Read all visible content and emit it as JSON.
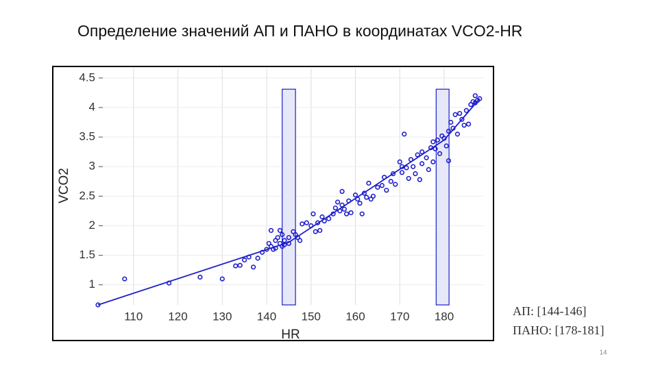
{
  "slide": {
    "title": "Определение значений АП и ПАНО в координатах VCO2-HR",
    "page_number": 14
  },
  "chart_data": {
    "type": "scatter",
    "x_label": "HR",
    "y_label": "VCO2",
    "xlim": [
      102,
      188.8
    ],
    "ylim": [
      0.66,
      4.66
    ],
    "xticks": [
      110,
      120,
      130,
      140,
      150,
      160,
      170,
      180
    ],
    "yticks": [
      1,
      1.5,
      2,
      2.5,
      3,
      3.5,
      4,
      4.5
    ],
    "grid": true,
    "color": "#1c1ccc",
    "points": {
      "x": [
        102,
        108,
        118,
        125,
        130,
        133,
        134,
        135,
        136,
        137,
        138,
        139,
        140,
        140.5,
        141,
        141,
        141.5,
        142,
        142,
        142.5,
        143,
        143,
        143.5,
        143.5,
        144,
        144,
        145,
        145,
        146,
        146.5,
        147,
        147.5,
        148,
        149,
        150,
        150.5,
        151,
        151.5,
        152,
        152.5,
        153,
        154,
        155,
        155.5,
        156,
        156.5,
        157,
        157,
        157.5,
        158,
        158.5,
        159,
        160,
        160.5,
        161,
        161.5,
        162,
        162.5,
        163,
        163.5,
        164,
        165,
        166,
        166.5,
        167,
        168,
        168.5,
        169,
        170,
        170.5,
        170.5,
        171,
        171.5,
        172,
        172.5,
        173,
        173.5,
        174,
        174.5,
        175,
        175,
        176,
        176.5,
        177,
        177.5,
        177.5,
        178,
        178.5,
        179,
        179.5,
        180,
        180.5,
        181,
        181,
        181.5,
        182,
        182.5,
        183,
        183.5,
        184,
        184.5,
        185,
        185.5,
        186,
        186.5,
        187,
        187,
        187.5,
        188
      ],
      "y": [
        0.66,
        1.1,
        1.03,
        1.13,
        1.1,
        1.32,
        1.33,
        1.42,
        1.47,
        1.3,
        1.45,
        1.55,
        1.6,
        1.7,
        1.92,
        1.65,
        1.6,
        1.75,
        1.62,
        1.8,
        1.92,
        1.7,
        1.65,
        1.85,
        1.75,
        1.68,
        1.7,
        1.8,
        1.9,
        1.85,
        1.8,
        1.75,
        2.03,
        2.05,
        2.0,
        2.2,
        1.9,
        2.05,
        1.92,
        2.15,
        2.08,
        2.12,
        2.2,
        2.3,
        2.4,
        2.25,
        2.58,
        2.35,
        2.28,
        2.2,
        2.42,
        2.22,
        2.52,
        2.45,
        2.38,
        2.2,
        2.55,
        2.48,
        2.72,
        2.45,
        2.5,
        2.65,
        2.68,
        2.82,
        2.6,
        2.75,
        2.88,
        2.7,
        3.08,
        2.9,
        3.0,
        3.55,
        2.98,
        2.8,
        3.12,
        3.0,
        2.88,
        3.2,
        2.78,
        3.05,
        3.25,
        3.15,
        2.95,
        3.32,
        3.42,
        3.08,
        3.3,
        3.45,
        3.22,
        3.52,
        3.48,
        3.35,
        3.6,
        3.1,
        3.75,
        3.65,
        3.88,
        3.55,
        3.9,
        3.8,
        3.7,
        3.95,
        3.72,
        4.05,
        4.1,
        4.2,
        4.08,
        4.12,
        4.15
      ]
    },
    "fit": {
      "x": [
        102,
        145,
        180,
        188
      ],
      "y": [
        0.66,
        1.72,
        3.45,
        4.15
      ]
    },
    "bands": [
      {
        "x": [
          143.5,
          146.5
        ],
        "top": 4.31
      },
      {
        "x": [
          178.2,
          181.1
        ],
        "top": 4.31
      }
    ],
    "annotations": [
      "АП: [144-146]",
      "ПАНО: [178-181]"
    ]
  }
}
